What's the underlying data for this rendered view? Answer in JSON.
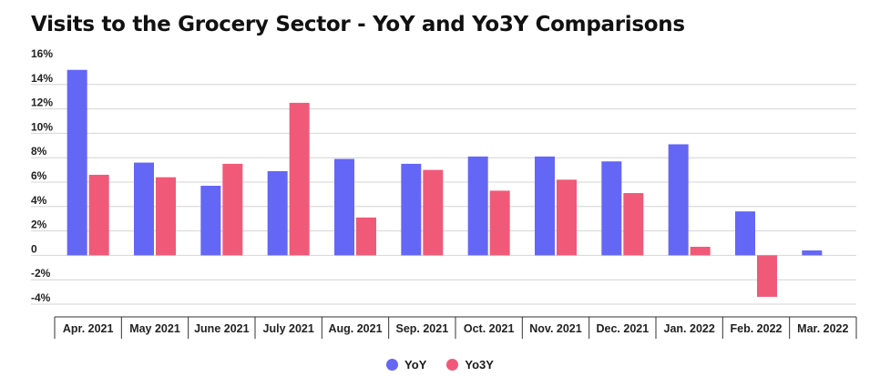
{
  "chart_data": {
    "type": "bar",
    "title": "Visits to the Grocery Sector - YoY and Yo3Y Comparisons",
    "categories": [
      "Apr. 2021",
      "May 2021",
      "June 2021",
      "July 2021",
      "Aug. 2021",
      "Sep. 2021",
      "Oct. 2021",
      "Nov. 2021",
      "Dec. 2021",
      "Jan. 2022",
      "Feb. 2022",
      "Mar. 2022"
    ],
    "series": [
      {
        "name": "YoY",
        "color": "#6466f5",
        "values": [
          15.2,
          7.6,
          5.7,
          6.9,
          7.9,
          7.5,
          8.1,
          8.1,
          7.7,
          9.1,
          3.6,
          0.4
        ]
      },
      {
        "name": "Yo3Y",
        "color": "#f05a78",
        "values": [
          6.6,
          6.4,
          7.5,
          12.5,
          3.1,
          7.0,
          5.3,
          6.2,
          5.1,
          0.7,
          -3.4,
          null
        ]
      }
    ],
    "yticks": [
      "16%",
      "14%",
      "12%",
      "10%",
      "8%",
      "6%",
      "4%",
      "2%",
      "0",
      "-2%",
      "-4%"
    ],
    "ylim": [
      -4,
      16
    ],
    "grid": true,
    "legend_position": "bottom"
  }
}
